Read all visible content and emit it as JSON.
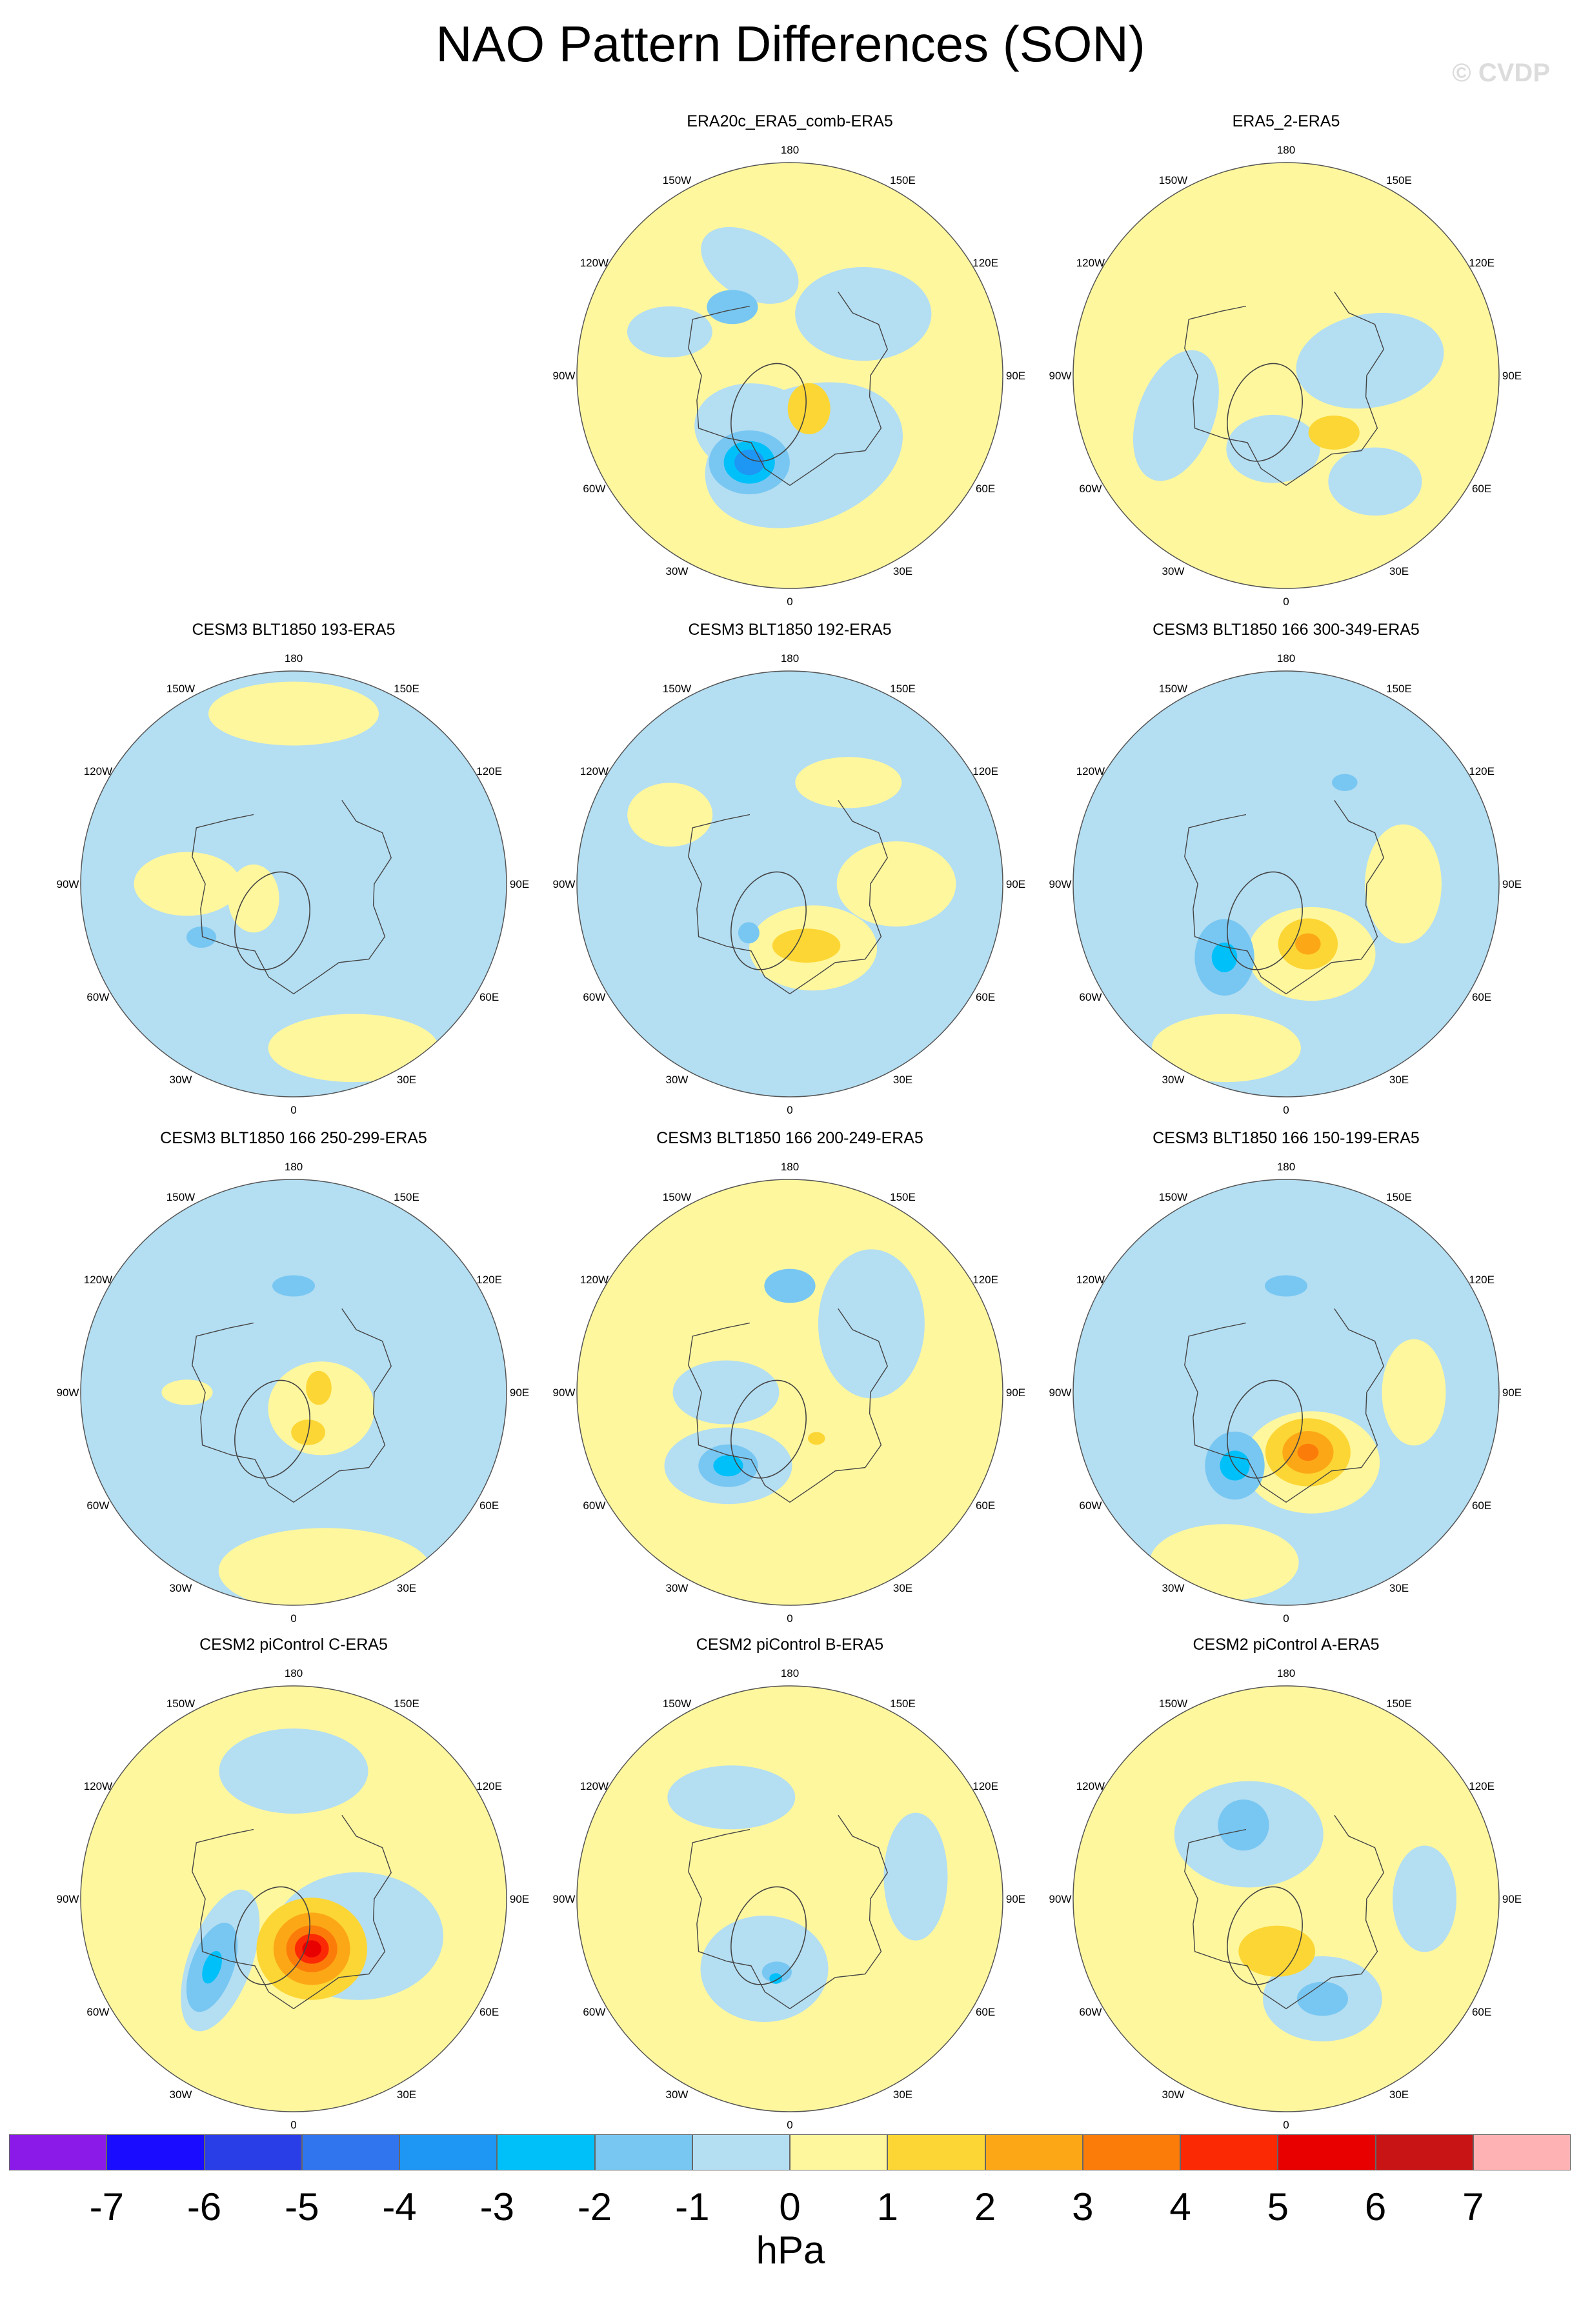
{
  "figure": {
    "title": "NAO Pattern Differences (SON)",
    "copyright": "© CVDP",
    "units": "hPa"
  },
  "map_labels": {
    "lon_180": "180",
    "lon_150w": "150W",
    "lon_150e": "150E",
    "lon_120w": "120W",
    "lon_120e": "120E",
    "lon_90w": "90W",
    "lon_90e": "90E",
    "lon_60w": "60W",
    "lon_60e": "60E",
    "lon_30w": "30W",
    "lon_30e": "30E",
    "lon_0": "0"
  },
  "colors": {
    "levels": [
      "#8b1ae8",
      "#1a0dff",
      "#2a3ee8",
      "#3074ee",
      "#1e96f4",
      "#00c0fa",
      "#78c7f2",
      "#b4def2",
      "#fff79e",
      "#fcd634",
      "#fca816",
      "#fc7c0a",
      "#fc2a04",
      "#e80000",
      "#c81414",
      "#ffb2b4"
    ],
    "background_pos": "#fff79e",
    "background_neg": "#b4def2",
    "coast": "#444444",
    "frame": "#555555"
  },
  "colorbar": {
    "ticks": [
      "-7",
      "-6",
      "-5",
      "-4",
      "-3",
      "-2",
      "-1",
      "0",
      "1",
      "2",
      "3",
      "4",
      "5",
      "6",
      "7"
    ]
  },
  "panels": [
    {
      "id": "era20c",
      "title": "ERA20c_ERA5_comb-ERA5",
      "background": "pos",
      "features": [
        {
          "lon": 10,
          "r": 0.38,
          "rx": 0.48,
          "ry": 0.32,
          "rot": -20,
          "level": 7
        },
        {
          "lon": 330,
          "r": 0.3,
          "rx": 0.3,
          "ry": 0.22,
          "rot": 10,
          "level": 7
        },
        {
          "lon": 130,
          "r": 0.45,
          "rx": 0.32,
          "ry": 0.22,
          "rot": 0,
          "level": 7
        },
        {
          "lon": 200,
          "r": 0.55,
          "rx": 0.25,
          "ry": 0.15,
          "rot": 30,
          "level": 7
        },
        {
          "lon": 250,
          "r": 0.6,
          "rx": 0.2,
          "ry": 0.12,
          "rot": 0,
          "level": 7
        },
        {
          "lon": 335,
          "r": 0.45,
          "rx": 0.19,
          "ry": 0.15,
          "rot": 0,
          "level": 6
        },
        {
          "lon": 335,
          "r": 0.45,
          "rx": 0.12,
          "ry": 0.1,
          "rot": 0,
          "level": 5
        },
        {
          "lon": 335,
          "r": 0.45,
          "rx": 0.07,
          "ry": 0.06,
          "rot": 0,
          "level": 4
        },
        {
          "lon": 30,
          "r": 0.18,
          "rx": 0.1,
          "ry": 0.12,
          "rot": 0,
          "level": 9
        },
        {
          "lon": 220,
          "r": 0.42,
          "rx": 0.12,
          "ry": 0.08,
          "rot": 0,
          "level": 6
        }
      ]
    },
    {
      "id": "era5_2",
      "title": "ERA5_2-ERA5",
      "background": "pos",
      "features": [
        {
          "lon": 350,
          "r": 0.35,
          "rx": 0.22,
          "ry": 0.16,
          "rot": 0,
          "level": 7
        },
        {
          "lon": 290,
          "r": 0.55,
          "rx": 0.18,
          "ry": 0.32,
          "rot": 20,
          "level": 7
        },
        {
          "lon": 100,
          "r": 0.4,
          "rx": 0.35,
          "ry": 0.22,
          "rot": -10,
          "level": 7
        },
        {
          "lon": 40,
          "r": 0.65,
          "rx": 0.22,
          "ry": 0.16,
          "rot": 0,
          "level": 7
        },
        {
          "lon": 40,
          "r": 0.35,
          "rx": 0.12,
          "ry": 0.08,
          "rot": 0,
          "level": 9
        }
      ]
    },
    {
      "id": "cesm3_193",
      "title": "CESM3 BLT1850 193-ERA5",
      "background": "neg",
      "features": [
        {
          "lon": 180,
          "r": 0.8,
          "rx": 0.4,
          "ry": 0.15,
          "rot": 0,
          "level": 8
        },
        {
          "lon": 20,
          "r": 0.82,
          "rx": 0.4,
          "ry": 0.16,
          "rot": 0,
          "level": 8
        },
        {
          "lon": 270,
          "r": 0.5,
          "rx": 0.25,
          "ry": 0.15,
          "rot": 0,
          "level": 8
        },
        {
          "lon": 290,
          "r": 0.2,
          "rx": 0.12,
          "ry": 0.16,
          "rot": 0,
          "level": 8
        },
        {
          "lon": 300,
          "r": 0.5,
          "rx": 0.07,
          "ry": 0.05,
          "rot": 0,
          "level": 6
        }
      ]
    },
    {
      "id": "cesm3_192",
      "title": "CESM3 BLT1850 192-ERA5",
      "background": "neg",
      "features": [
        {
          "lon": 20,
          "r": 0.32,
          "rx": 0.3,
          "ry": 0.2,
          "rot": 0,
          "level": 8
        },
        {
          "lon": 90,
          "r": 0.5,
          "rx": 0.28,
          "ry": 0.2,
          "rot": 0,
          "level": 8
        },
        {
          "lon": 150,
          "r": 0.55,
          "rx": 0.25,
          "ry": 0.12,
          "rot": 0,
          "level": 8
        },
        {
          "lon": 240,
          "r": 0.65,
          "rx": 0.2,
          "ry": 0.15,
          "rot": 0,
          "level": 8
        },
        {
          "lon": 15,
          "r": 0.3,
          "rx": 0.16,
          "ry": 0.08,
          "rot": 0,
          "level": 9
        },
        {
          "lon": 320,
          "r": 0.3,
          "rx": 0.05,
          "ry": 0.05,
          "rot": 0,
          "level": 6
        }
      ]
    },
    {
      "id": "cesm3_300",
      "title": "CESM3 BLT1850 166 300-349-ERA5",
      "background": "neg",
      "features": [
        {
          "lon": 20,
          "r": 0.35,
          "rx": 0.3,
          "ry": 0.22,
          "rot": 0,
          "level": 8
        },
        {
          "lon": 90,
          "r": 0.55,
          "rx": 0.18,
          "ry": 0.28,
          "rot": 0,
          "level": 8
        },
        {
          "lon": 340,
          "r": 0.82,
          "rx": 0.35,
          "ry": 0.16,
          "rot": 0,
          "level": 8
        },
        {
          "lon": 20,
          "r": 0.3,
          "rx": 0.14,
          "ry": 0.12,
          "rot": 0,
          "level": 9
        },
        {
          "lon": 20,
          "r": 0.3,
          "rx": 0.06,
          "ry": 0.05,
          "rot": 0,
          "level": 10
        },
        {
          "lon": 320,
          "r": 0.45,
          "rx": 0.14,
          "ry": 0.18,
          "rot": 0,
          "level": 6
        },
        {
          "lon": 320,
          "r": 0.45,
          "rx": 0.06,
          "ry": 0.07,
          "rot": 0,
          "level": 5
        },
        {
          "lon": 150,
          "r": 0.55,
          "rx": 0.06,
          "ry": 0.04,
          "rot": 0,
          "level": 6
        }
      ]
    },
    {
      "id": "cesm3_250",
      "title": "CESM3 BLT1850 166 250-299-ERA5",
      "background": "neg",
      "features": [
        {
          "lon": 10,
          "r": 0.85,
          "rx": 0.5,
          "ry": 0.2,
          "rot": 0,
          "level": 8
        },
        {
          "lon": 60,
          "r": 0.15,
          "rx": 0.25,
          "ry": 0.22,
          "rot": 0,
          "level": 8
        },
        {
          "lon": 270,
          "r": 0.5,
          "rx": 0.12,
          "ry": 0.06,
          "rot": 0,
          "level": 8
        },
        {
          "lon": 100,
          "r": 0.12,
          "rx": 0.06,
          "ry": 0.08,
          "rot": 0,
          "level": 9
        },
        {
          "lon": 20,
          "r": 0.2,
          "rx": 0.08,
          "ry": 0.06,
          "rot": 0,
          "level": 9
        },
        {
          "lon": 180,
          "r": 0.5,
          "rx": 0.1,
          "ry": 0.05,
          "rot": 0,
          "level": 6
        }
      ]
    },
    {
      "id": "cesm3_200",
      "title": "CESM3 BLT1850 166 200-249-ERA5",
      "background": "pos",
      "features": [
        {
          "lon": 320,
          "r": 0.45,
          "rx": 0.3,
          "ry": 0.18,
          "rot": 0,
          "level": 7
        },
        {
          "lon": 270,
          "r": 0.3,
          "rx": 0.25,
          "ry": 0.15,
          "rot": 0,
          "level": 7
        },
        {
          "lon": 130,
          "r": 0.5,
          "rx": 0.25,
          "ry": 0.35,
          "rot": 0,
          "level": 7
        },
        {
          "lon": 180,
          "r": 0.5,
          "rx": 0.12,
          "ry": 0.08,
          "rot": 0,
          "level": 6
        },
        {
          "lon": 320,
          "r": 0.45,
          "rx": 0.14,
          "ry": 0.1,
          "rot": 0,
          "level": 6
        },
        {
          "lon": 320,
          "r": 0.45,
          "rx": 0.07,
          "ry": 0.05,
          "rot": 0,
          "level": 5
        },
        {
          "lon": 30,
          "r": 0.25,
          "rx": 0.04,
          "ry": 0.03,
          "rot": 0,
          "level": 9
        }
      ]
    },
    {
      "id": "cesm3_150",
      "title": "CESM3 BLT1850 166 150-199-ERA5",
      "background": "neg",
      "features": [
        {
          "lon": 20,
          "r": 0.35,
          "rx": 0.32,
          "ry": 0.24,
          "rot": 0,
          "level": 8
        },
        {
          "lon": 90,
          "r": 0.6,
          "rx": 0.15,
          "ry": 0.25,
          "rot": 0,
          "level": 8
        },
        {
          "lon": 340,
          "r": 0.85,
          "rx": 0.35,
          "ry": 0.18,
          "rot": 0,
          "level": 8
        },
        {
          "lon": 20,
          "r": 0.3,
          "rx": 0.2,
          "ry": 0.16,
          "rot": 0,
          "level": 9
        },
        {
          "lon": 20,
          "r": 0.3,
          "rx": 0.12,
          "ry": 0.1,
          "rot": 0,
          "level": 10
        },
        {
          "lon": 20,
          "r": 0.3,
          "rx": 0.05,
          "ry": 0.04,
          "rot": 0,
          "level": 11
        },
        {
          "lon": 325,
          "r": 0.42,
          "rx": 0.14,
          "ry": 0.16,
          "rot": 0,
          "level": 6
        },
        {
          "lon": 325,
          "r": 0.42,
          "rx": 0.07,
          "ry": 0.07,
          "rot": 0,
          "level": 5
        },
        {
          "lon": 180,
          "r": 0.5,
          "rx": 0.1,
          "ry": 0.05,
          "rot": 0,
          "level": 6
        }
      ]
    },
    {
      "id": "cesm2_c",
      "title": "CESM2 piControl C-ERA5",
      "background": "pos",
      "features": [
        {
          "lon": 310,
          "r": 0.45,
          "rx": 0.15,
          "ry": 0.35,
          "rot": 20,
          "level": 7
        },
        {
          "lon": 60,
          "r": 0.35,
          "rx": 0.4,
          "ry": 0.3,
          "rot": 0,
          "level": 7
        },
        {
          "lon": 180,
          "r": 0.6,
          "rx": 0.35,
          "ry": 0.2,
          "rot": 0,
          "level": 7
        },
        {
          "lon": 310,
          "r": 0.5,
          "rx": 0.1,
          "ry": 0.22,
          "rot": 20,
          "level": 6
        },
        {
          "lon": 310,
          "r": 0.5,
          "rx": 0.04,
          "ry": 0.08,
          "rot": 20,
          "level": 5
        },
        {
          "lon": 20,
          "r": 0.25,
          "rx": 0.26,
          "ry": 0.24,
          "rot": 0,
          "level": 9
        },
        {
          "lon": 20,
          "r": 0.25,
          "rx": 0.18,
          "ry": 0.17,
          "rot": 0,
          "level": 10
        },
        {
          "lon": 20,
          "r": 0.25,
          "rx": 0.12,
          "ry": 0.11,
          "rot": 0,
          "level": 11
        },
        {
          "lon": 20,
          "r": 0.25,
          "rx": 0.08,
          "ry": 0.07,
          "rot": 0,
          "level": 12
        },
        {
          "lon": 20,
          "r": 0.25,
          "rx": 0.045,
          "ry": 0.04,
          "rot": 0,
          "level": 13
        }
      ]
    },
    {
      "id": "cesm2_b",
      "title": "CESM2 piControl B-ERA5",
      "background": "pos",
      "features": [
        {
          "lon": 340,
          "r": 0.35,
          "rx": 0.3,
          "ry": 0.25,
          "rot": 0,
          "level": 7
        },
        {
          "lon": 210,
          "r": 0.55,
          "rx": 0.3,
          "ry": 0.15,
          "rot": 0,
          "level": 7
        },
        {
          "lon": 100,
          "r": 0.6,
          "rx": 0.15,
          "ry": 0.3,
          "rot": 0,
          "level": 7
        },
        {
          "lon": 350,
          "r": 0.35,
          "rx": 0.07,
          "ry": 0.05,
          "rot": 0,
          "level": 6
        },
        {
          "lon": 350,
          "r": 0.38,
          "rx": 0.03,
          "ry": 0.025,
          "rot": 0,
          "level": 5
        }
      ]
    },
    {
      "id": "cesm2_a",
      "title": "CESM2 piControl A-ERA5",
      "background": "pos",
      "features": [
        {
          "lon": 210,
          "r": 0.35,
          "rx": 0.35,
          "ry": 0.25,
          "rot": 0,
          "level": 7
        },
        {
          "lon": 20,
          "r": 0.5,
          "rx": 0.28,
          "ry": 0.2,
          "rot": 0,
          "level": 7
        },
        {
          "lon": 90,
          "r": 0.65,
          "rx": 0.15,
          "ry": 0.25,
          "rot": 0,
          "level": 7
        },
        {
          "lon": 210,
          "r": 0.4,
          "rx": 0.12,
          "ry": 0.12,
          "rot": 0,
          "level": 6
        },
        {
          "lon": 20,
          "r": 0.5,
          "rx": 0.12,
          "ry": 0.08,
          "rot": 0,
          "level": 6
        },
        {
          "lon": 350,
          "r": 0.25,
          "rx": 0.18,
          "ry": 0.12,
          "rot": 0,
          "level": 9
        }
      ]
    }
  ]
}
